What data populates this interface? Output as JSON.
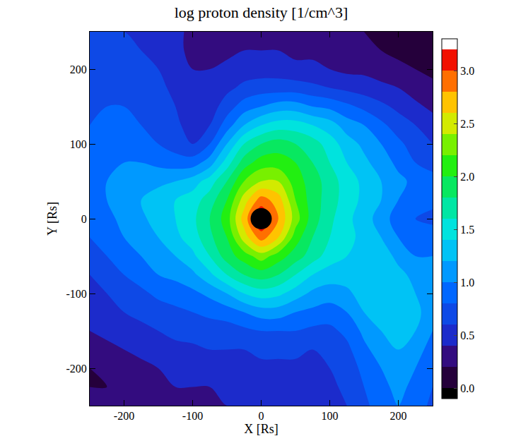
{
  "chart_data": {
    "type": "contour",
    "title": "log proton density [1/cm^3]",
    "x_label": "X [Rs]",
    "y_label": "Y [Rs]",
    "x": [
      -250,
      -225,
      -200,
      -175,
      -150,
      -125,
      -100,
      -75,
      -50,
      -25,
      0,
      25,
      50,
      75,
      100,
      125,
      150,
      175,
      200,
      225,
      250
    ],
    "y": [
      -250,
      -225,
      -200,
      -175,
      -150,
      -125,
      -100,
      -75,
      -50,
      -25,
      0,
      25,
      50,
      75,
      100,
      125,
      150,
      175,
      200,
      225,
      250
    ],
    "cells": [
      [
        0.25,
        0.25,
        0.25,
        0.3,
        0.3,
        0.35,
        0.35,
        0.35,
        0.4,
        0.4,
        0.4,
        0.45,
        0.45,
        0.45,
        0.5,
        0.6,
        0.75,
        0.9,
        1.0,
        0.9,
        0.75
      ],
      [
        0.2,
        0.2,
        0.25,
        0.3,
        0.35,
        0.4,
        0.4,
        0.4,
        0.45,
        0.45,
        0.45,
        0.5,
        0.5,
        0.5,
        0.55,
        0.65,
        0.8,
        0.95,
        1.05,
        0.95,
        0.8
      ],
      [
        0.2,
        0.25,
        0.3,
        0.35,
        0.4,
        0.45,
        0.45,
        0.5,
        0.5,
        0.5,
        0.55,
        0.55,
        0.55,
        0.55,
        0.6,
        0.7,
        0.85,
        1.0,
        1.1,
        1.0,
        0.85
      ],
      [
        0.3,
        0.35,
        0.4,
        0.45,
        0.5,
        0.55,
        0.55,
        0.6,
        0.6,
        0.6,
        0.65,
        0.65,
        0.65,
        0.6,
        0.65,
        0.75,
        0.95,
        1.1,
        1.2,
        1.1,
        0.9
      ],
      [
        0.4,
        0.45,
        0.5,
        0.55,
        0.6,
        0.65,
        0.7,
        0.7,
        0.7,
        0.75,
        0.8,
        0.8,
        0.8,
        0.75,
        0.75,
        0.85,
        1.05,
        1.2,
        1.25,
        1.2,
        1.0
      ],
      [
        0.5,
        0.55,
        0.6,
        0.65,
        0.7,
        0.75,
        0.8,
        0.85,
        0.9,
        1.0,
        1.1,
        1.1,
        1.0,
        0.95,
        0.9,
        1.0,
        1.2,
        1.3,
        1.3,
        1.25,
        1.1
      ],
      [
        0.55,
        0.6,
        0.7,
        0.75,
        0.85,
        0.9,
        0.95,
        1.05,
        1.2,
        1.4,
        1.5,
        1.45,
        1.3,
        1.15,
        1.1,
        1.15,
        1.3,
        1.35,
        1.3,
        1.2,
        1.2
      ],
      [
        0.6,
        0.7,
        0.8,
        0.9,
        1.0,
        1.05,
        1.15,
        1.35,
        1.6,
        1.8,
        1.9,
        1.8,
        1.6,
        1.4,
        1.3,
        1.3,
        1.4,
        1.35,
        1.25,
        1.15,
        1.1
      ],
      [
        0.7,
        0.8,
        0.9,
        1.0,
        1.1,
        1.2,
        1.35,
        1.6,
        1.9,
        2.1,
        2.3,
        2.1,
        1.9,
        1.7,
        1.5,
        1.4,
        1.4,
        1.3,
        1.15,
        1.0,
        1.0
      ],
      [
        0.8,
        0.9,
        1.0,
        1.1,
        1.2,
        1.35,
        1.5,
        1.75,
        2.0,
        2.5,
        2.9,
        2.6,
        2.1,
        1.8,
        1.6,
        1.45,
        1.35,
        1.2,
        1.0,
        0.85,
        0.9
      ],
      [
        0.85,
        0.95,
        1.05,
        1.15,
        1.3,
        1.4,
        1.55,
        1.8,
        2.1,
        2.7,
        3.2,
        2.8,
        2.3,
        1.9,
        1.65,
        1.45,
        1.3,
        1.1,
        0.9,
        0.8,
        0.75
      ],
      [
        0.9,
        1.0,
        1.1,
        1.2,
        1.3,
        1.4,
        1.5,
        1.7,
        2.0,
        2.5,
        2.9,
        2.7,
        2.2,
        1.9,
        1.7,
        1.5,
        1.35,
        1.2,
        1.0,
        0.9,
        0.85
      ],
      [
        0.9,
        1.0,
        1.05,
        1.1,
        1.15,
        1.2,
        1.3,
        1.5,
        1.8,
        2.2,
        2.4,
        2.4,
        2.1,
        1.9,
        1.7,
        1.5,
        1.35,
        1.2,
        1.05,
        0.95,
        0.9
      ],
      [
        0.9,
        0.95,
        1.0,
        1.0,
        0.95,
        0.9,
        0.9,
        1.1,
        1.5,
        1.9,
        2.1,
        2.1,
        2.0,
        1.8,
        1.6,
        1.4,
        1.25,
        1.1,
        0.95,
        0.8,
        0.7
      ],
      [
        0.85,
        0.9,
        0.9,
        0.85,
        0.8,
        0.7,
        0.6,
        0.8,
        1.2,
        1.6,
        1.8,
        1.9,
        1.8,
        1.7,
        1.5,
        1.3,
        1.15,
        1.0,
        0.85,
        0.7,
        0.6
      ],
      [
        0.8,
        0.85,
        0.85,
        0.8,
        0.75,
        0.65,
        0.5,
        0.6,
        0.9,
        1.2,
        1.4,
        1.5,
        1.5,
        1.4,
        1.3,
        1.1,
        1.0,
        0.85,
        0.7,
        0.6,
        0.5
      ],
      [
        0.75,
        0.8,
        0.8,
        0.75,
        0.7,
        0.6,
        0.45,
        0.5,
        0.7,
        0.9,
        1.0,
        1.1,
        1.1,
        1.0,
        0.95,
        0.85,
        0.75,
        0.65,
        0.55,
        0.45,
        0.35
      ],
      [
        0.7,
        0.75,
        0.75,
        0.7,
        0.65,
        0.55,
        0.45,
        0.45,
        0.55,
        0.65,
        0.7,
        0.7,
        0.7,
        0.65,
        0.6,
        0.55,
        0.5,
        0.45,
        0.4,
        0.3,
        0.25
      ],
      [
        0.7,
        0.7,
        0.7,
        0.65,
        0.6,
        0.5,
        0.4,
        0.4,
        0.45,
        0.5,
        0.5,
        0.5,
        0.45,
        0.45,
        0.4,
        0.35,
        0.35,
        0.3,
        0.25,
        0.2,
        0.15
      ],
      [
        0.65,
        0.65,
        0.65,
        0.6,
        0.55,
        0.45,
        0.35,
        0.35,
        0.35,
        0.4,
        0.4,
        0.4,
        0.35,
        0.35,
        0.3,
        0.3,
        0.25,
        0.2,
        0.15,
        0.1,
        0.05
      ],
      [
        0.6,
        0.6,
        0.6,
        0.55,
        0.5,
        0.45,
        0.35,
        0.3,
        0.3,
        0.3,
        0.3,
        0.3,
        0.3,
        0.3,
        0.28,
        0.25,
        0.2,
        0.15,
        0.1,
        0.05,
        0.0
      ]
    ],
    "xlim": [
      -250,
      250
    ],
    "ylim": [
      -250,
      250
    ],
    "xticks": [
      -200,
      -100,
      0,
      100,
      200
    ],
    "yticks": [
      -200,
      -100,
      0,
      100,
      200
    ],
    "colorbar_lim": [
      -0.06,
      3.21
    ],
    "colorbar_ticks": [
      {
        "value": 0,
        "label": "0.0"
      },
      {
        "value": 0.5,
        "label": "0.5"
      },
      {
        "value": 1,
        "label": "1.0"
      },
      {
        "value": 1.5,
        "label": "1.5"
      },
      {
        "value": 2,
        "label": "2.0"
      },
      {
        "value": 2.5,
        "label": "2.5"
      },
      {
        "value": 3,
        "label": "3.0"
      }
    ],
    "body": {
      "x": 0,
      "y": 0,
      "color": "#000000"
    },
    "grid": false
  }
}
